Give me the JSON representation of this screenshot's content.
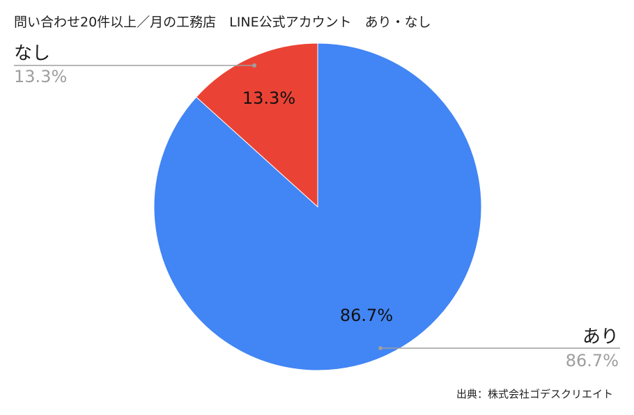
{
  "chart_data": {
    "type": "pie",
    "title": "問い合わせ20件以上／月の工務店　LINE公式アカウント　あり・なし",
    "slices": [
      {
        "label": "あり",
        "value": 86.7,
        "display": "86.7%",
        "color": "#4285f4"
      },
      {
        "label": "なし",
        "value": 13.3,
        "display": "13.3%",
        "color": "#ea4335"
      }
    ],
    "source": "出典：株式会社ゴデスクリエイト"
  }
}
